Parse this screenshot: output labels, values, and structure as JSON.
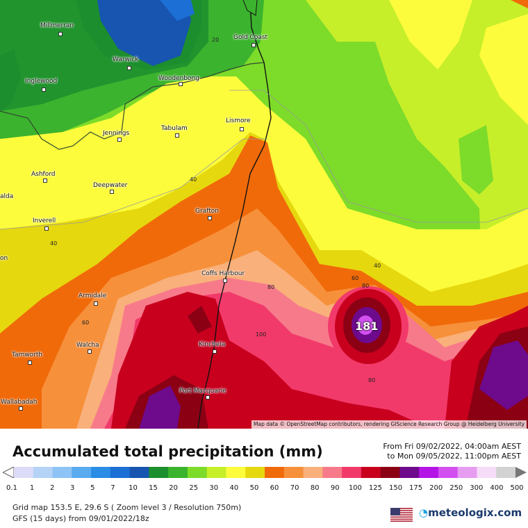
{
  "map": {
    "towns": [
      {
        "name": "Millmerran"
      },
      {
        "name": "Warwick"
      },
      {
        "name": "Gold Coast"
      },
      {
        "name": "Inglewood"
      },
      {
        "name": "Woodenbong"
      },
      {
        "name": "Lismore"
      },
      {
        "name": "Jennings"
      },
      {
        "name": "Tabulam"
      },
      {
        "name": "Ashford"
      },
      {
        "name": "Deepwater"
      },
      {
        "name": "Grafton"
      },
      {
        "name": "Inverell"
      },
      {
        "name": "Coffs Harbour"
      },
      {
        "name": "Armidale"
      },
      {
        "name": "Walcha"
      },
      {
        "name": "Kinchela"
      },
      {
        "name": "Tamworth"
      },
      {
        "name": "Port Macquarie"
      },
      {
        "name": "Wallabadah"
      },
      {
        "name": "alda"
      },
      {
        "name": "on"
      }
    ],
    "contour_labels": [
      "20",
      "40",
      "40",
      "60",
      "60",
      "80",
      "40",
      "80",
      "100",
      "80"
    ],
    "max_label": "181",
    "attribution": "Map data © OpenStreetMap contributors, rendering GIScience Research Group @ Heidelberg University"
  },
  "legend": {
    "title": "Accumulated total precipitation (mm)",
    "date_from": "From Fri 09/02/2022, 04:00am AEST",
    "date_to": "to Mon 09/05/2022, 11:00pm AEST",
    "ticks": [
      "0.1",
      "1",
      "2",
      "3",
      "5",
      "7",
      "10",
      "15",
      "20",
      "25",
      "30",
      "40",
      "50",
      "60",
      "70",
      "80",
      "90",
      "100",
      "125",
      "150",
      "175",
      "200",
      "250",
      "300",
      "400",
      "500"
    ],
    "colors": [
      "#dcdcf8",
      "#b5d3f6",
      "#8ec4f5",
      "#5aaaf0",
      "#2b8ce6",
      "#1c6fd4",
      "#1755b0",
      "#1c8e2e",
      "#3cb32e",
      "#7ddb2a",
      "#c6ef2a",
      "#fcfc3c",
      "#e6d80e",
      "#f06a0a",
      "#f7903a",
      "#f9b07a",
      "#f77a8a",
      "#f23a6a",
      "#c8001e",
      "#8c0014",
      "#6e0a8c",
      "#b414e6",
      "#d250f0",
      "#e69cf0",
      "#f5dcf8",
      "#d2d2d2"
    ],
    "grid_info": "Grid map 153.5 E, 29.6 S ( Zoom level 3 / Resolution 750m)",
    "model_info": "GFS (15 days) from  09/01/2022/18z"
  },
  "brand": {
    "name": "meteologix.com",
    "flag_icon": "us-flag-icon"
  }
}
